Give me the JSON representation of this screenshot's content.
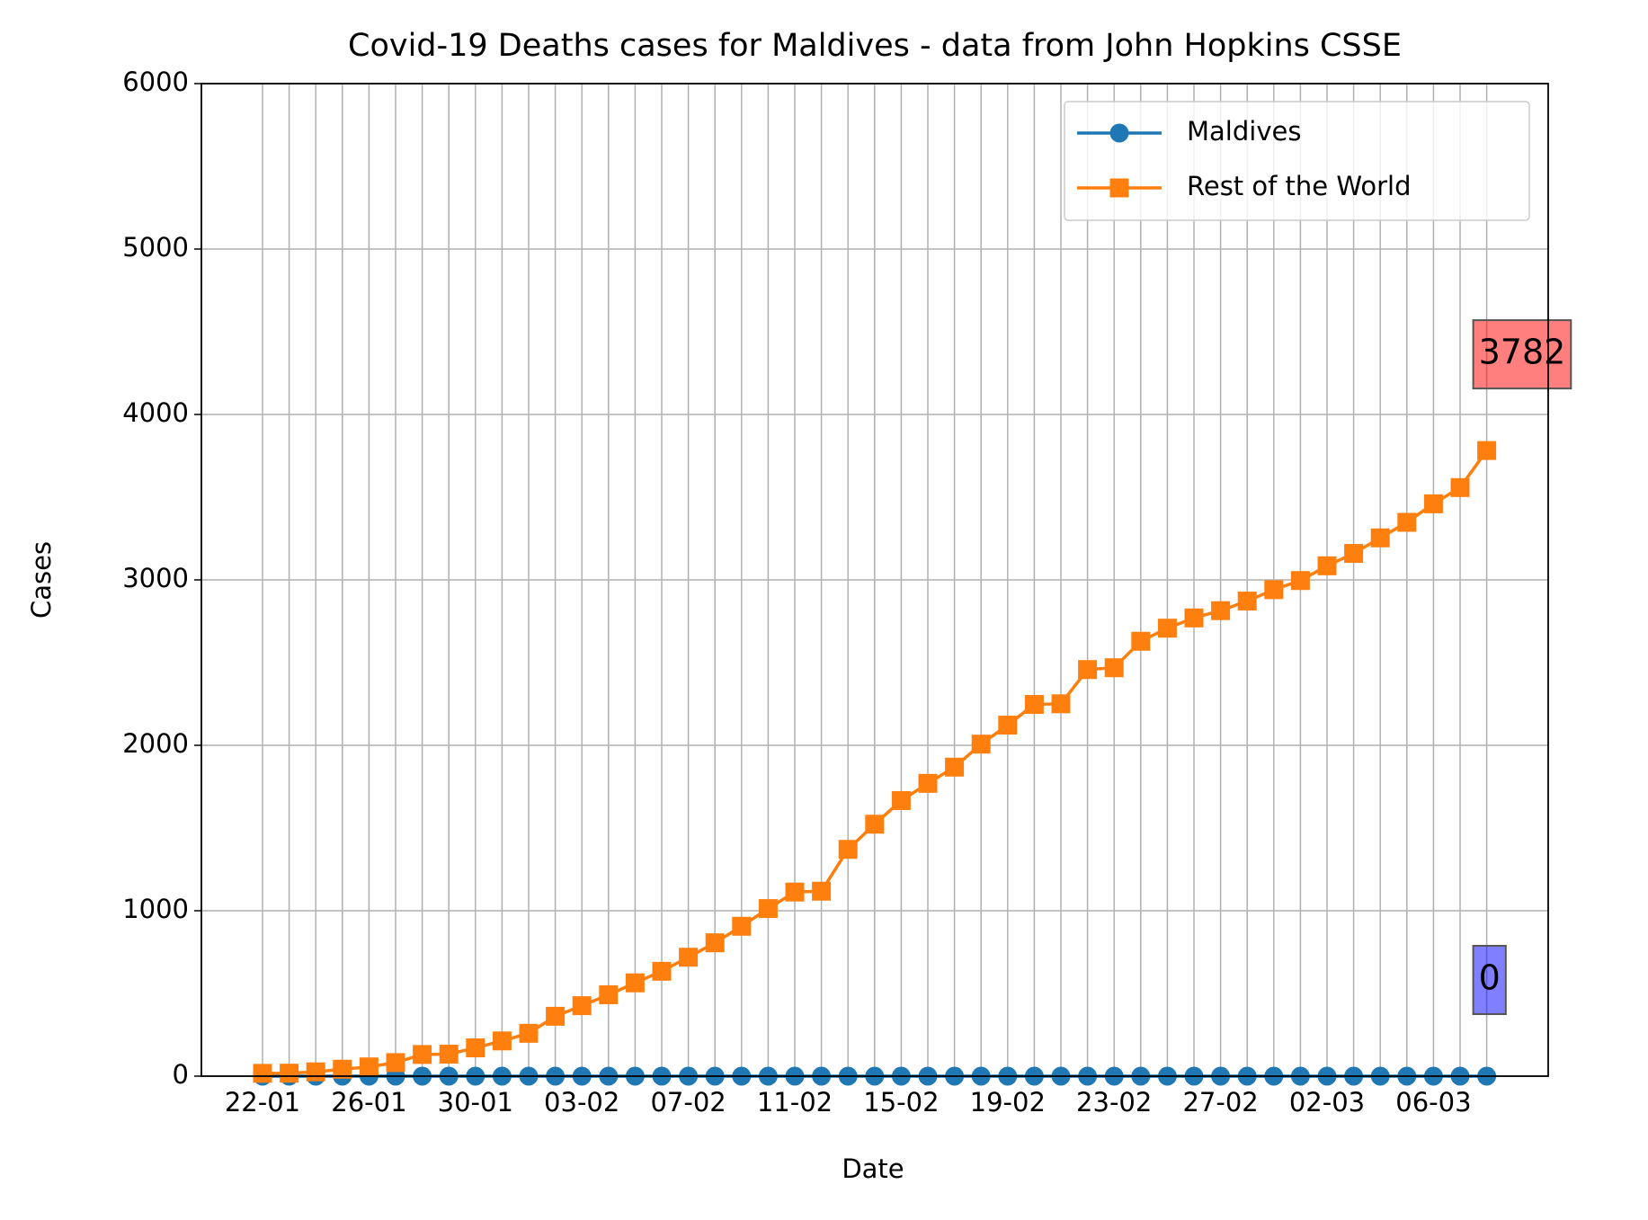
{
  "chart_data": {
    "type": "line",
    "title": "Covid-19 Deaths cases for Maldives - data from John Hopkins CSSE",
    "xlabel": "Date",
    "ylabel": "Cases",
    "categories": [
      "22-01",
      null,
      null,
      null,
      "26-01",
      null,
      null,
      null,
      "30-01",
      null,
      null,
      null,
      "03-02",
      null,
      null,
      null,
      "07-02",
      null,
      null,
      null,
      "11-02",
      null,
      null,
      null,
      "15-02",
      null,
      null,
      null,
      "19-02",
      null,
      null,
      null,
      "23-02",
      null,
      null,
      null,
      "27-02",
      null,
      null,
      null,
      "02-03",
      null,
      null,
      null,
      "06-03",
      null,
      null
    ],
    "series": [
      {
        "name": "Maldives",
        "color": "#1f77b4",
        "marker": "circle",
        "label_box_color": "#0000ff",
        "values": [
          0,
          0,
          0,
          0,
          0,
          0,
          0,
          0,
          0,
          0,
          0,
          0,
          0,
          0,
          0,
          0,
          0,
          0,
          0,
          0,
          0,
          0,
          0,
          0,
          0,
          0,
          0,
          0,
          0,
          0,
          0,
          0,
          0,
          0,
          0,
          0,
          0,
          0,
          0,
          0,
          0,
          0,
          0,
          0,
          0,
          0,
          0
        ]
      },
      {
        "name": "Rest of the World",
        "color": "#ff7f0e",
        "marker": "square",
        "label_box_color": "#ff0000",
        "values": [
          17,
          18,
          26,
          42,
          56,
          82,
          131,
          133,
          171,
          213,
          259,
          362,
          426,
          492,
          564,
          634,
          719,
          806,
          906,
          1013,
          1113,
          1118,
          1371,
          1523,
          1666,
          1770,
          1868,
          2007,
          2122,
          2247,
          2251,
          2458,
          2469,
          2629,
          2708,
          2770,
          2814,
          2872,
          2941,
          2996,
          3085,
          3160,
          3254,
          3348,
          3460,
          3558,
          3782
        ]
      }
    ],
    "ylim": [
      0,
      6000
    ],
    "yticks": [
      0,
      1000,
      2000,
      3000,
      4000,
      5000,
      6000
    ],
    "grid": true,
    "legend": "upper right"
  }
}
